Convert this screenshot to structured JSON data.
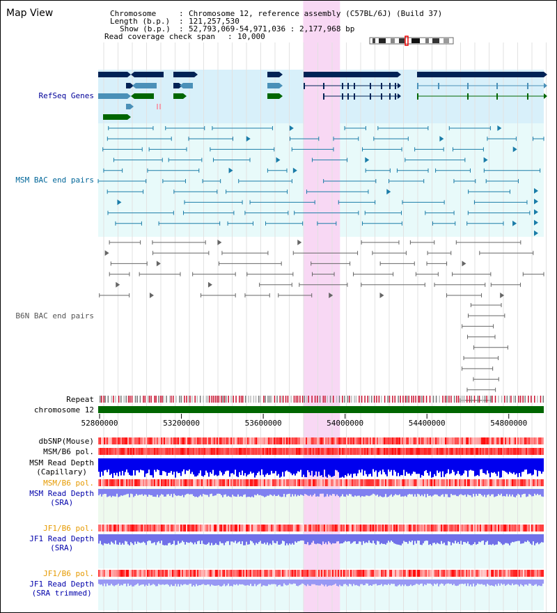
{
  "app": {
    "title": "Map View"
  },
  "header": {
    "chromosome_label": "Chromosome",
    "chromosome_value": "Chromosome 12, reference assembly (C57BL/6J) (Build 37)",
    "length_label": "Length (b.p.)",
    "length_value": "121,257,530",
    "show_label": "Show (b.p.)",
    "show_value": "52,793,069-54,971,036 : 2,177,968 bp",
    "coverage_label": "Read coverage check span",
    "coverage_value": "10,000"
  },
  "view": {
    "start": 52793069,
    "end": 54971036,
    "highlight_start": 53795000,
    "highlight_end": 53975000
  },
  "axis": {
    "ticks": [
      "52800000",
      "53200000",
      "53600000",
      "54000000",
      "54400000",
      "54800000"
    ],
    "tick_values": [
      52800000,
      53200000,
      53600000,
      54000000,
      54400000,
      54800000
    ]
  },
  "tracks": {
    "refseq": "RefSeq Genes",
    "msm_bac": "MSM BAC end pairs",
    "b6n_bac": "B6N BAC end pairs",
    "repeat": "Repeat",
    "chromosome": "chromosome 12",
    "dbsnp": "dbSNP(Mouse)",
    "msm_b6_pol_1": "MSM/B6 pol.",
    "msm_depth_cap": "MSM Read Depth\n(Capillary)",
    "msm_b6_pol_2": "MSM/B6 pol.",
    "msm_depth_sra": "MSM Read Depth\n(SRA)",
    "jf1_b6_pol_1": "JF1/B6 pol.",
    "jf1_depth_sra": "JF1 Read Depth\n(SRA)",
    "jf1_b6_pol_2": "JF1/B6 pol.",
    "jf1_depth_trim": "JF1 Read Depth\n(SRA trimmed)"
  },
  "colors": {
    "refseq_label": "#000099",
    "msm_label": "#006699",
    "b6n_label": "#555555",
    "orange_label": "#e69a00",
    "blue_label": "#0000aa",
    "highlight": "#f8d8f4",
    "refseq_bg": "#d8f0fa",
    "msm_bg": "#e8fafa",
    "gene_dark": "#002255",
    "gene_mid": "#4a90b8",
    "gene_green": "#006600",
    "chrom_bar": "#006600"
  }
}
